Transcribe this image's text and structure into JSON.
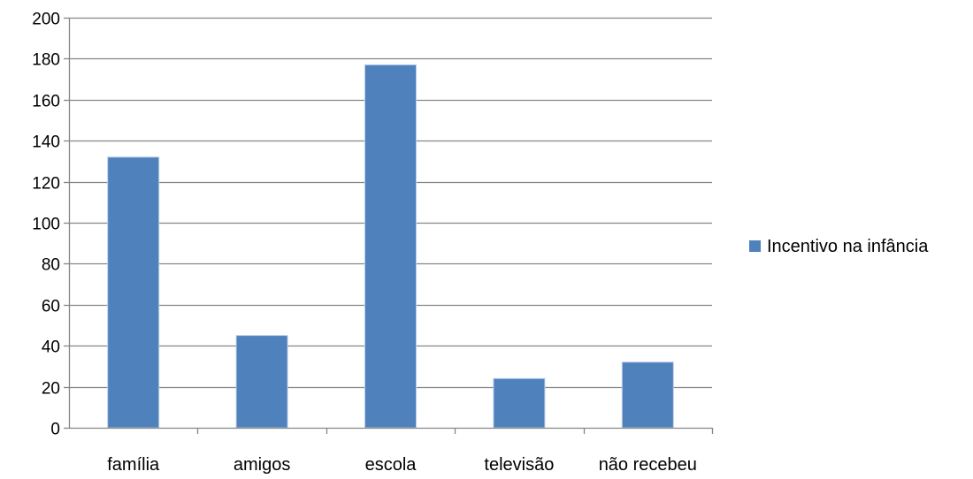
{
  "chart_data": {
    "type": "bar",
    "categories": [
      "família",
      "amigos",
      "escola",
      "televisão",
      "não recebeu"
    ],
    "series": [
      {
        "name": "Incentivo na infância",
        "values": [
          132,
          45,
          177,
          24,
          32
        ],
        "color": "#4F81BD"
      }
    ],
    "ylim": [
      0,
      200
    ],
    "yticks": [
      0,
      20,
      40,
      60,
      80,
      100,
      120,
      140,
      160,
      180,
      200
    ],
    "title": "",
    "xlabel": "",
    "ylabel": "",
    "grid": true,
    "legend_position": "right"
  }
}
